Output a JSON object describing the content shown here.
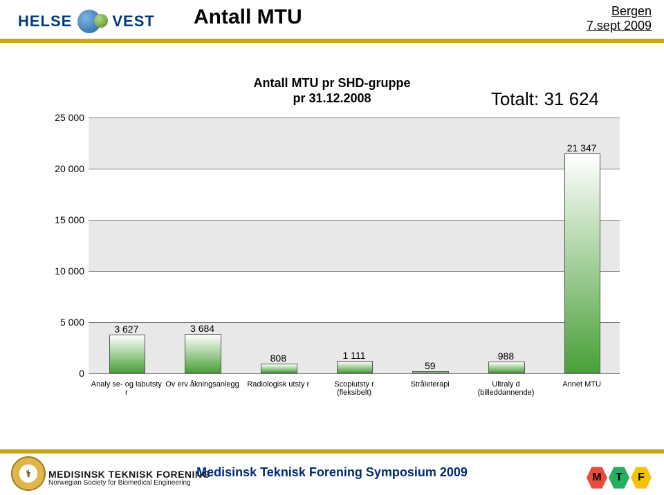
{
  "header": {
    "brand_left": "HELSE",
    "brand_right": "VEST",
    "title": "Antall MTU",
    "location_line1": "Bergen",
    "location_line2": "7.sept 2009",
    "divider_color": "#c9a518"
  },
  "chart": {
    "type": "bar",
    "title_line1": "Antall MTU pr SHD-gruppe",
    "title_line2": "pr 31.12.2008",
    "title_fontsize": 18,
    "total_label": "Totalt: 31 624",
    "total_fontsize": 26,
    "background_color": "#ffffff",
    "band_color": "#e8e8e8",
    "grid_color": "#7a7a7a",
    "ylim": [
      0,
      25000
    ],
    "ytick_step": 5000,
    "yticks": [
      "0",
      "5 000",
      "10 000",
      "15 000",
      "20 000",
      "25 000"
    ],
    "bar_width": 0.46,
    "bar_border": "#555555",
    "bar_gradient_top": "#ffffff",
    "bar_gradient_bottom": "#49a038",
    "value_fontsize": 14,
    "xlabel_fontsize": 11,
    "categories": [
      "Analy se- og labutsty r",
      "Ov erv åkningsanlegg",
      "Radiologisk utsty r",
      "Scopiutsty r (fleksibelt)",
      "Stråleterapi",
      "Ultraly d (billeddannende)",
      "Annet MTU"
    ],
    "values": [
      3627,
      3684,
      808,
      1111,
      59,
      988,
      21347
    ],
    "value_labels": [
      "3 627",
      "3 684",
      "808",
      "1 111",
      "59",
      "988",
      "21 347"
    ]
  },
  "footer": {
    "symposium": "Medisinsk Teknisk Forening Symposium 2009",
    "org_line1": "MEDISINSK TEKNISK FORENING",
    "org_line2": "Norwegian Society for Biomedical Engineering",
    "seal_text": "⚕",
    "mtf_letters": [
      "M",
      "T",
      "F"
    ],
    "mtf_colors": [
      "#e74c3c",
      "#27ae60",
      "#f4c20d"
    ],
    "divider_color": "#c9a518",
    "title_color": "#002a77"
  }
}
